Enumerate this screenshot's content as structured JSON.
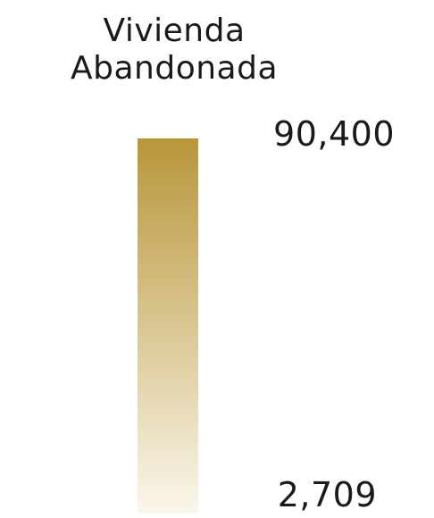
{
  "chart_data": {
    "type": "heatmap",
    "title": "Vivienda Abandonada",
    "title_lines": [
      "Vivienda",
      "Abandonada"
    ],
    "legend": {
      "kind": "continuous-color-ramp",
      "orientation": "vertical",
      "min": 2709,
      "max": 90400,
      "min_label": "2,709",
      "max_label": "90,400",
      "color_max": "#b8963a",
      "color_min": "#faf6ea"
    }
  }
}
